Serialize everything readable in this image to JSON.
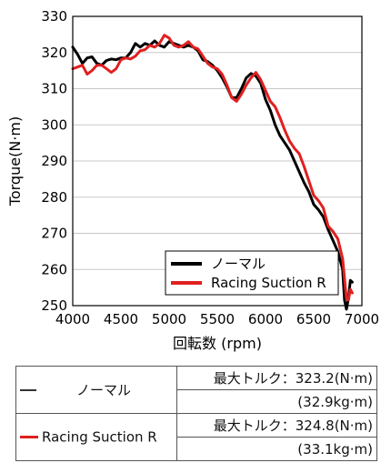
{
  "chart_data": {
    "type": "line",
    "ylabel": "Torque(N·m)",
    "xlabel": "回転数 (rpm)",
    "xlim": [
      4000,
      7000
    ],
    "ylim": [
      250,
      330
    ],
    "xticks": [
      4000,
      4500,
      5000,
      5500,
      6000,
      6500,
      7000
    ],
    "yticks": [
      250,
      260,
      270,
      280,
      290,
      300,
      310,
      320,
      330
    ],
    "grid": "horizontal",
    "legend_position": "bottom-right",
    "series": [
      {
        "name": "ノーマル",
        "color": "#000000",
        "x": [
          4000,
          4050,
          4100,
          4150,
          4200,
          4250,
          4300,
          4350,
          4400,
          4450,
          4500,
          4550,
          4600,
          4650,
          4700,
          4750,
          4800,
          4850,
          4900,
          4950,
          5000,
          5050,
          5100,
          5150,
          5200,
          5250,
          5300,
          5350,
          5400,
          5450,
          5500,
          5550,
          5600,
          5650,
          5700,
          5750,
          5800,
          5850,
          5900,
          5950,
          6000,
          6050,
          6100,
          6150,
          6200,
          6250,
          6300,
          6350,
          6400,
          6450,
          6500,
          6550,
          6600,
          6650,
          6700,
          6750,
          6800,
          6820,
          6840,
          6860,
          6880,
          6900
        ],
        "y": [
          321.5,
          319.5,
          317.0,
          318.5,
          318.8,
          317.0,
          316.5,
          317.8,
          318.2,
          318.0,
          318.5,
          318.5,
          320.0,
          322.5,
          321.5,
          322.5,
          322.0,
          323.2,
          322.0,
          321.5,
          323.0,
          322.5,
          322.0,
          321.5,
          322.0,
          321.5,
          320.5,
          318.0,
          317.5,
          316.5,
          315.0,
          313.0,
          310.5,
          307.5,
          307.5,
          310.0,
          313.0,
          314.2,
          313.5,
          311.5,
          307.0,
          304.0,
          300.0,
          297.0,
          295.0,
          293.0,
          290.0,
          287.0,
          284.0,
          281.5,
          278.0,
          276.5,
          274.5,
          271.0,
          268.0,
          265.0,
          260.0,
          251.5,
          249.0,
          252.0,
          257.0,
          256.5
        ]
      },
      {
        "name": "Racing Suction R",
        "color": "#e02020",
        "x": [
          4000,
          4050,
          4100,
          4150,
          4200,
          4250,
          4300,
          4350,
          4400,
          4450,
          4500,
          4550,
          4600,
          4650,
          4700,
          4750,
          4800,
          4850,
          4900,
          4950,
          5000,
          5050,
          5100,
          5150,
          5200,
          5250,
          5300,
          5350,
          5400,
          5450,
          5500,
          5550,
          5600,
          5650,
          5700,
          5750,
          5800,
          5850,
          5900,
          5950,
          6000,
          6050,
          6100,
          6150,
          6200,
          6250,
          6300,
          6350,
          6400,
          6450,
          6500,
          6550,
          6600,
          6650,
          6700,
          6750,
          6800,
          6820,
          6840,
          6860,
          6880,
          6900
        ],
        "y": [
          315.5,
          316.0,
          316.5,
          314.0,
          315.0,
          316.5,
          316.5,
          315.5,
          314.5,
          315.5,
          318.0,
          318.5,
          318.2,
          319.0,
          320.5,
          320.8,
          322.0,
          321.5,
          322.5,
          324.8,
          324.0,
          322.0,
          321.5,
          322.0,
          323.0,
          321.5,
          321.0,
          319.0,
          317.0,
          316.0,
          315.5,
          314.0,
          311.0,
          307.5,
          306.5,
          308.5,
          311.0,
          313.0,
          314.5,
          312.5,
          309.5,
          306.5,
          305.0,
          302.0,
          298.5,
          295.5,
          293.5,
          292.0,
          288.5,
          284.5,
          280.5,
          279.0,
          277.0,
          272.0,
          270.5,
          268.5,
          263.0,
          257.5,
          252.0,
          251.5,
          254.5,
          253.5
        ]
      }
    ]
  },
  "table": {
    "rows": [
      {
        "name": "ノーマル",
        "color": "#333333",
        "max_torque": "最大トルク：323.2(N·m)",
        "max_torque_kg": "(32.9kg·m)"
      },
      {
        "name": "Racing Suction R",
        "color": "#e02020",
        "max_torque": "最大トルク：324.8(N·m)",
        "max_torque_kg": "(33.1kg·m)"
      }
    ]
  }
}
